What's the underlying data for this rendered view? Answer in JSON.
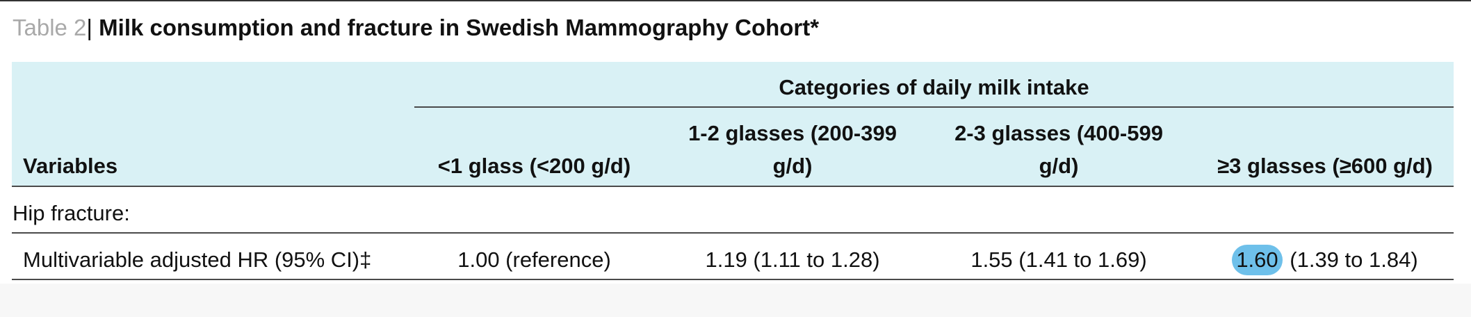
{
  "caption": {
    "label": "Table 2",
    "separator": "|",
    "title": " Milk consumption and fracture in Swedish Mammography Cohort*"
  },
  "table": {
    "spanning_header": "Categories of daily milk intake",
    "columns": {
      "variables": "Variables",
      "c1": "<1 glass (<200 g/d)",
      "c2_line1": "1-2 glasses (200-399",
      "c2_line2": "g/d)",
      "c3_line1": "2-3 glasses (400-599",
      "c3_line2": "g/d)",
      "c4": "≥3 glasses (≥600 g/d)"
    },
    "section_label": "Hip fracture:",
    "row": {
      "label": "Multivariable adjusted HR (95% CI)‡",
      "c1": "1.00 (reference)",
      "c2": "1.19 (1.11 to 1.28)",
      "c3": "1.55 (1.41 to 1.69)",
      "c4_highlight": "1.60",
      "c4_rest": " (1.39 to 1.84)"
    }
  },
  "colors": {
    "header_background": "#d9f1f5",
    "highlight": "#6ec0ea",
    "caption_label": "#a9a9a9"
  }
}
